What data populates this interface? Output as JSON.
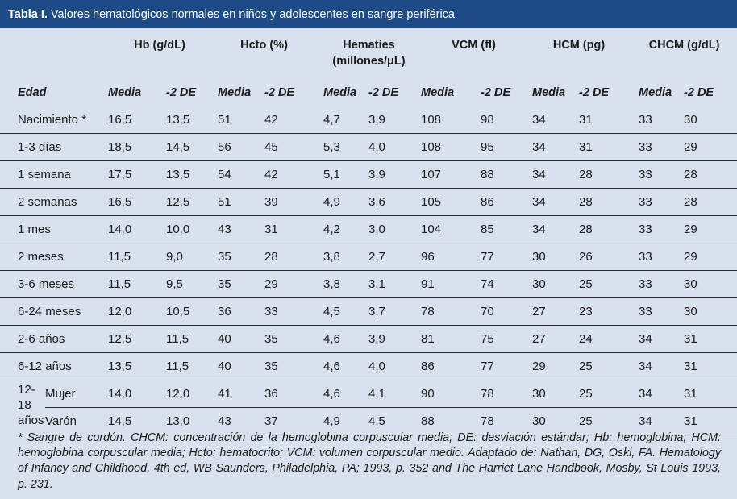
{
  "title": {
    "label": "Tabla I.",
    "text": "Valores hematológicos normales en niños y adolescentes en sangre periférica"
  },
  "column_groups": [
    {
      "line1": "Hb (g/dL)",
      "line2": ""
    },
    {
      "line1": "Hcto (%)",
      "line2": ""
    },
    {
      "line1": "Hematíes",
      "line2": "(millones/μL)"
    },
    {
      "line1": "VCM (fl)",
      "line2": ""
    },
    {
      "line1": "HCM (pg)",
      "line2": ""
    },
    {
      "line1": "CHCM (g/dL)",
      "line2": ""
    }
  ],
  "subheaders": {
    "edad": "Edad",
    "media": "Media",
    "de": "-2 DE"
  },
  "rows": [
    {
      "label": "Nacimiento *",
      "values": [
        "16,5",
        "13,5",
        "51",
        "42",
        "4,7",
        "3,9",
        "108",
        "98",
        "34",
        "31",
        "33",
        "30"
      ]
    },
    {
      "label": "1-3 días",
      "values": [
        "18,5",
        "14,5",
        "56",
        "45",
        "5,3",
        "4,0",
        "108",
        "95",
        "34",
        "31",
        "33",
        "29"
      ]
    },
    {
      "label": "1 semana",
      "values": [
        "17,5",
        "13,5",
        "54",
        "42",
        "5,1",
        "3,9",
        "107",
        "88",
        "34",
        "28",
        "33",
        "28"
      ]
    },
    {
      "label": "2 semanas",
      "values": [
        "16,5",
        "12,5",
        "51",
        "39",
        "4,9",
        "3,6",
        "105",
        "86",
        "34",
        "28",
        "33",
        "28"
      ]
    },
    {
      "label": "1 mes",
      "values": [
        "14,0",
        "10,0",
        "43",
        "31",
        "4,2",
        "3,0",
        "104",
        "85",
        "34",
        "28",
        "33",
        "29"
      ]
    },
    {
      "label": "2 meses",
      "values": [
        "11,5",
        "9,0",
        "35",
        "28",
        "3,8",
        "2,7",
        "96",
        "77",
        "30",
        "26",
        "33",
        "29"
      ]
    },
    {
      "label": "3-6 meses",
      "values": [
        "11,5",
        "9,5",
        "35",
        "29",
        "3,8",
        "3,1",
        "91",
        "74",
        "30",
        "25",
        "33",
        "30"
      ]
    },
    {
      "label": "6-24 meses",
      "values": [
        "12,0",
        "10,5",
        "36",
        "33",
        "4,5",
        "3,7",
        "78",
        "70",
        "27",
        "23",
        "33",
        "30"
      ]
    },
    {
      "label": "2-6 años",
      "values": [
        "12,5",
        "11,5",
        "40",
        "35",
        "4,6",
        "3,9",
        "81",
        "75",
        "27",
        "24",
        "34",
        "31"
      ]
    },
    {
      "label": "6-12 años",
      "values": [
        "13,5",
        "11,5",
        "40",
        "35",
        "4,6",
        "4,0",
        "86",
        "77",
        "29",
        "25",
        "34",
        "31"
      ]
    }
  ],
  "group": {
    "label": "12-\n18\naños",
    "rows": [
      {
        "label": "Mujer",
        "values": [
          "14,0",
          "12,0",
          "41",
          "36",
          "4,6",
          "4,1",
          "90",
          "78",
          "30",
          "25",
          "34",
          "31"
        ]
      },
      {
        "label": "Varón",
        "values": [
          "14,5",
          "13,0",
          "43",
          "37",
          "4,9",
          "4,5",
          "88",
          "78",
          "30",
          "25",
          "34",
          "31"
        ]
      }
    ]
  },
  "footnote": "* Sangre de cordón. CHCM: concentración de la hemoglobina corpuscular media; DE: desviación estándar; Hb: hemoglobina; HCM: hemoglobina corpuscular media; Hcto: hematocrito; VCM: volumen corpuscular medio. Adaptado de: Nathan, DG, Oski, FA. Hematology of Infancy and Childhood, 4th ed, WB Saunders, Philadelphia, PA; 1993, p. 352 and The Harriet Lane Handbook, Mosby, St Louis 1993, p. 231."
}
